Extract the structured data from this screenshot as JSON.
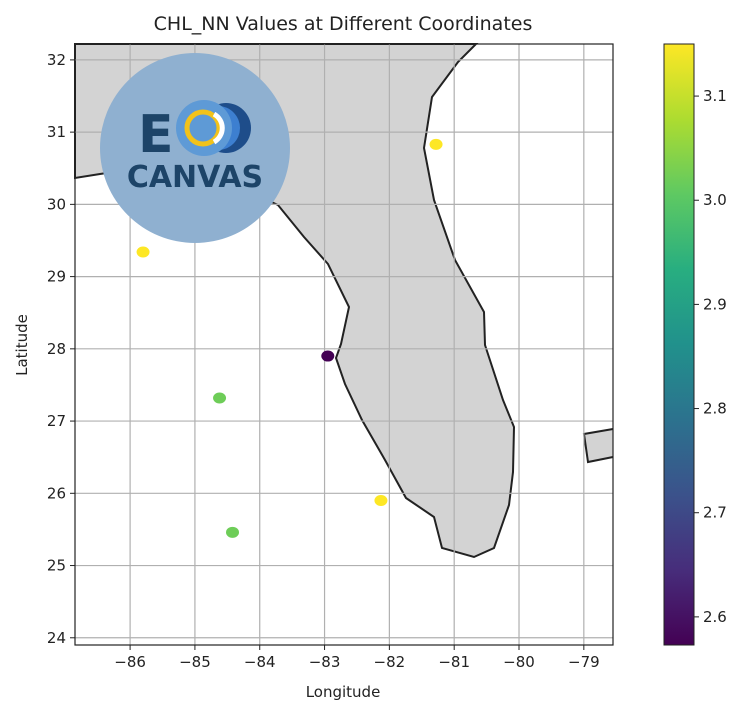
{
  "chart_data": {
    "type": "scatter",
    "title": "CHL_NN Values at Different Coordinates",
    "xlabel": "Longitude",
    "ylabel": "Latitude",
    "xlim": [
      -86.85,
      -78.55
    ],
    "ylim": [
      23.9,
      32.22
    ],
    "xticks": [
      -86,
      -85,
      -84,
      -83,
      -82,
      -81,
      -80,
      -79
    ],
    "yticks": [
      24,
      25,
      26,
      27,
      28,
      29,
      30,
      31,
      32
    ],
    "grid": true,
    "points": [
      {
        "lon": -81.28,
        "lat": 30.83,
        "chl_nn": 3.15
      },
      {
        "lon": -85.8,
        "lat": 29.34,
        "chl_nn": 3.15
      },
      {
        "lon": -82.95,
        "lat": 27.9,
        "chl_nn": 2.57
      },
      {
        "lon": -84.62,
        "lat": 27.32,
        "chl_nn": 3.02
      },
      {
        "lon": -82.13,
        "lat": 25.9,
        "chl_nn": 3.15
      },
      {
        "lon": -84.42,
        "lat": 25.46,
        "chl_nn": 3.02
      }
    ],
    "colorbar": {
      "colormap": "viridis",
      "range": [
        2.573,
        3.15
      ],
      "ticks": [
        2.6,
        2.7,
        2.8,
        2.9,
        3.0,
        3.1
      ]
    },
    "land_color": "#d3d3d3",
    "coastline_color": "#222222"
  },
  "logo": {
    "text_top": "E",
    "text_bottom": "CANVAS",
    "circle_color": "#8fb0d0",
    "text_color": "#1d4468"
  }
}
